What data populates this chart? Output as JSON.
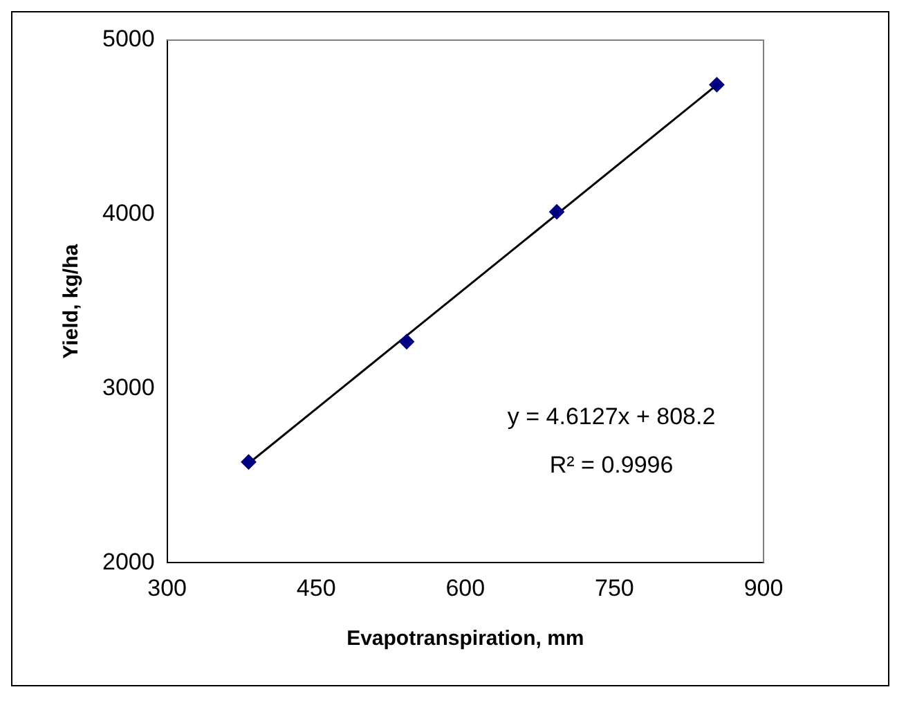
{
  "chart_data": {
    "type": "scatter",
    "xlabel": "Evapotranspiration, mm",
    "ylabel": "Yield, kg/ha",
    "x": [
      382,
      541,
      692,
      853
    ],
    "series": [
      {
        "color": "#000080",
        "marker": "diamond",
        "values": [
          2578,
          3269,
          4014,
          4744
        ]
      },
      {
        "type": "line",
        "color": "#000000",
        "marker": "none",
        "x": [
          382,
          853
        ],
        "values": [
          2570,
          4743
        ]
      }
    ],
    "xlim": [
      300,
      900
    ],
    "xticks": [
      300,
      450,
      600,
      750,
      900
    ],
    "ylim": [
      2000,
      5000
    ],
    "yticks": [
      2000,
      3000,
      4000,
      5000
    ],
    "grid": false,
    "legend": false,
    "annotations": [
      "y = 4.6127x + 808.2",
      "R² = 0.9996"
    ]
  }
}
